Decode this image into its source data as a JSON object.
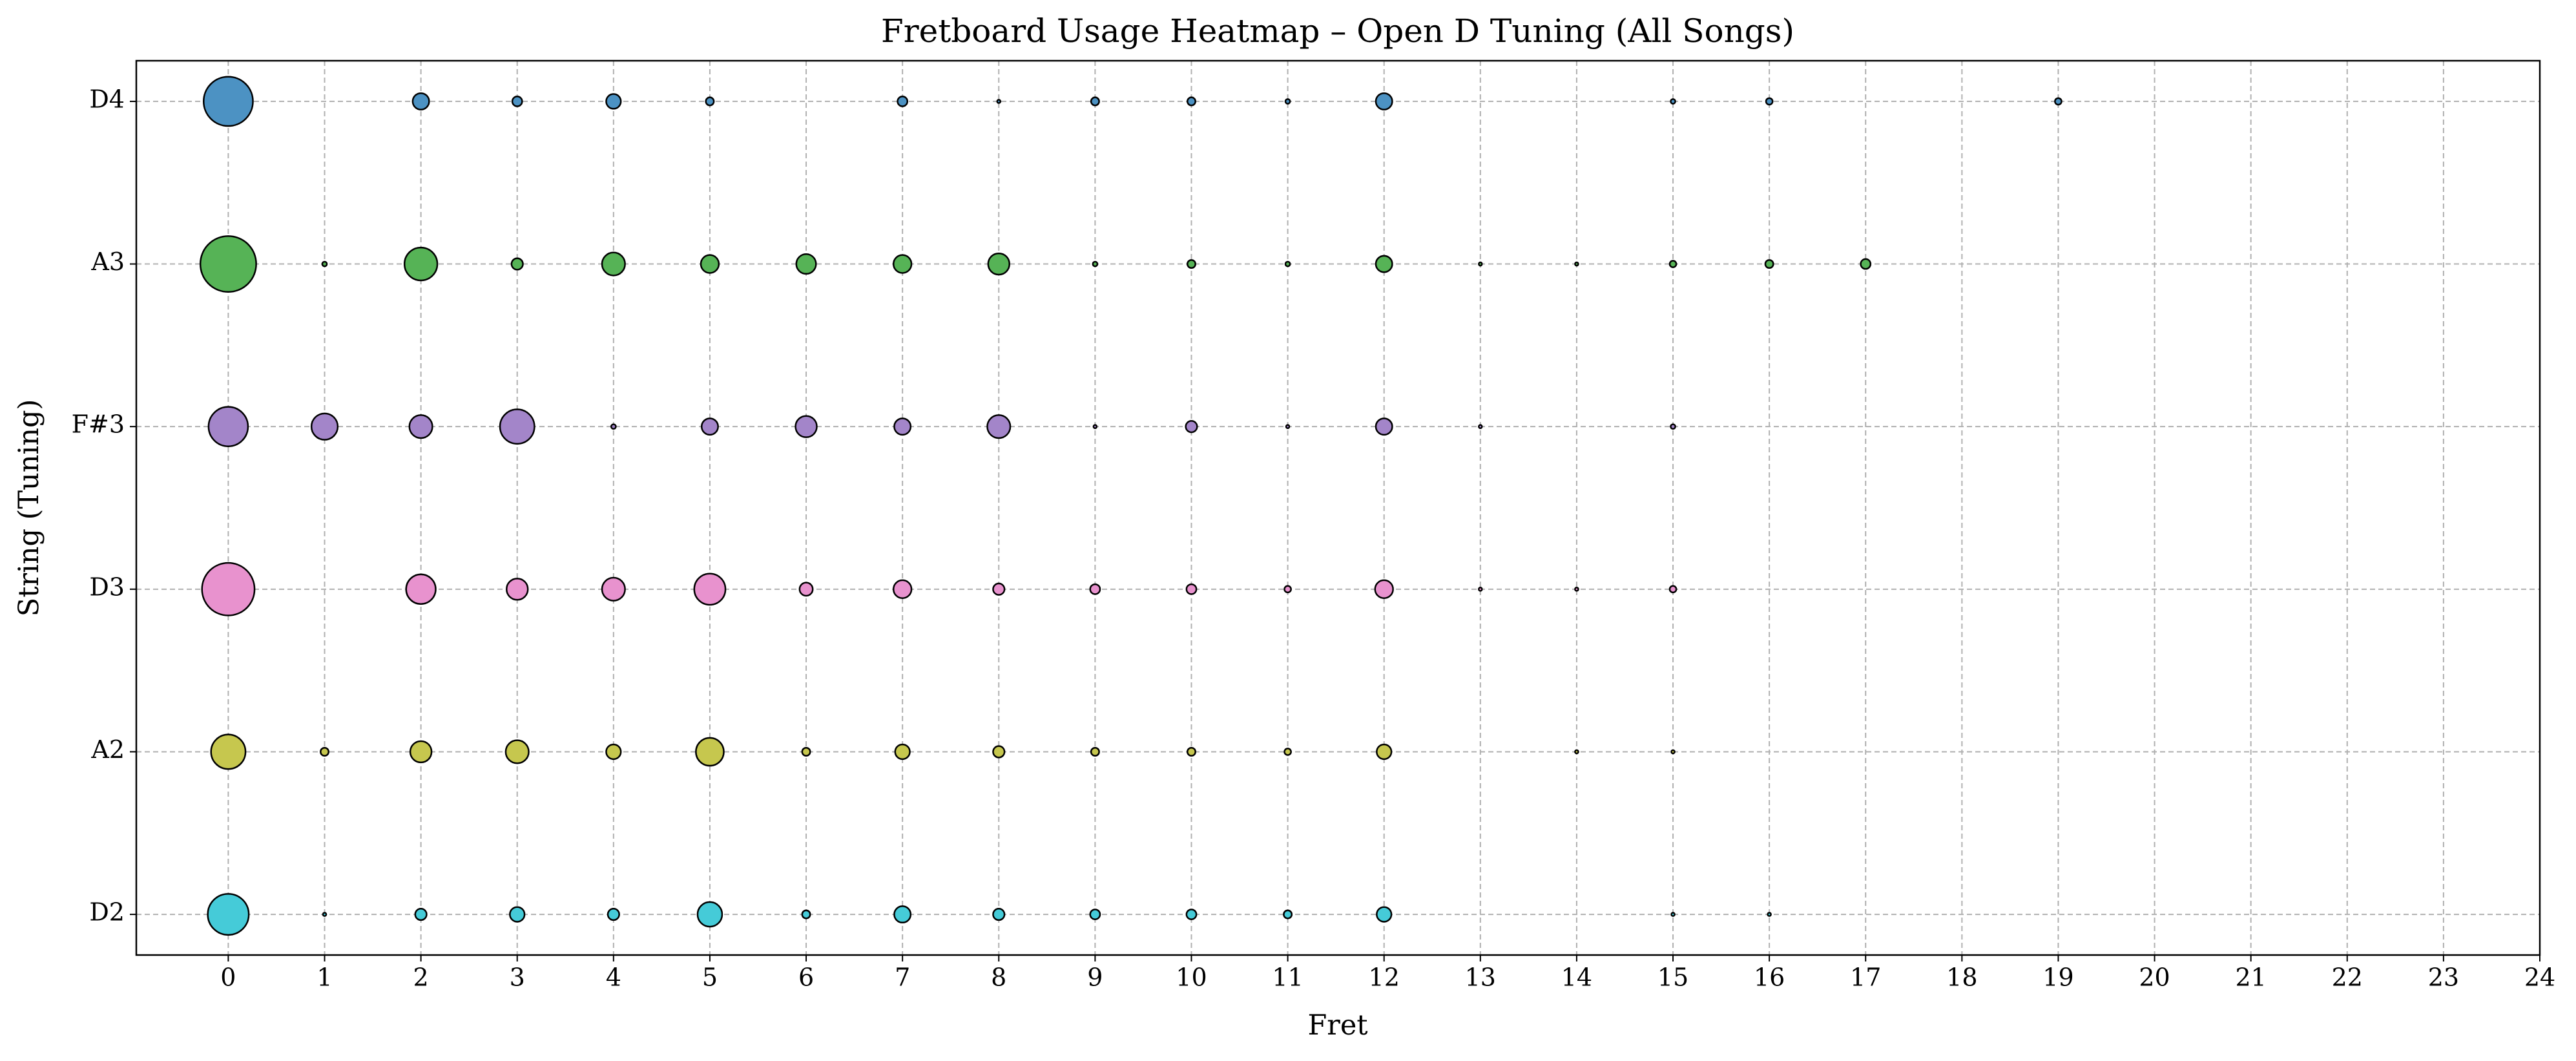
{
  "chart_data": {
    "type": "bubble",
    "title": "Fretboard Usage Heatmap – Open D Tuning (All Songs)",
    "x_label": "Fret",
    "y_label": "String (Tuning)",
    "categories": [
      "D2",
      "A2",
      "D3",
      "F#3",
      "A3",
      "D4"
    ],
    "xlim": [
      -0.955,
      24
    ],
    "ylim": [
      -0.25,
      5.25
    ],
    "xticks": [
      0,
      1,
      2,
      3,
      4,
      5,
      6,
      7,
      8,
      9,
      10,
      11,
      12,
      13,
      14,
      15,
      16,
      17,
      18,
      19,
      20,
      21,
      22,
      23,
      24
    ],
    "grid": true,
    "series": [
      {
        "color": "#45cbd8",
        "x": [
          0,
          1,
          2,
          3,
          4,
          5,
          6,
          7,
          8,
          9,
          10,
          11,
          12,
          15,
          16
        ],
        "sizes": [
          156,
          1,
          12,
          20,
          12,
          56,
          6,
          25,
          12,
          9,
          9,
          6,
          20,
          1,
          1
        ]
      },
      {
        "color": "#c6c74e",
        "x": [
          0,
          1,
          2,
          3,
          4,
          5,
          6,
          7,
          8,
          9,
          10,
          11,
          12,
          14,
          15
        ],
        "sizes": [
          110,
          6,
          42,
          49,
          20,
          72,
          6,
          20,
          12,
          6,
          6,
          4,
          20,
          1,
          1
        ]
      },
      {
        "color": "#e892ce",
        "x": [
          0,
          2,
          3,
          4,
          5,
          6,
          7,
          8,
          9,
          10,
          11,
          12,
          13,
          14,
          15
        ],
        "sizes": [
          256,
          81,
          42,
          49,
          90,
          16,
          30,
          12,
          9,
          9,
          4,
          30,
          1,
          1,
          4
        ]
      },
      {
        "color": "#a385c9",
        "x": [
          0,
          1,
          2,
          3,
          4,
          5,
          6,
          7,
          8,
          9,
          10,
          11,
          12,
          13,
          15
        ],
        "sizes": [
          144,
          64,
          49,
          110,
          2,
          25,
          42,
          25,
          49,
          1,
          12,
          1,
          25,
          1,
          2
        ]
      },
      {
        "color": "#56b356",
        "x": [
          0,
          1,
          2,
          3,
          4,
          5,
          6,
          7,
          8,
          9,
          10,
          11,
          12,
          13,
          14,
          15,
          16,
          17
        ],
        "sizes": [
          289,
          2,
          100,
          12,
          49,
          30,
          36,
          30,
          42,
          2,
          6,
          2,
          25,
          1,
          1,
          4,
          6,
          9
        ]
      },
      {
        "color": "#4c92c3",
        "x": [
          0,
          2,
          3,
          4,
          5,
          7,
          8,
          9,
          10,
          11,
          12,
          15,
          16,
          19
        ],
        "sizes": [
          225,
          25,
          9,
          20,
          6,
          9,
          1,
          6,
          6,
          2,
          25,
          2,
          4,
          4
        ]
      }
    ]
  }
}
